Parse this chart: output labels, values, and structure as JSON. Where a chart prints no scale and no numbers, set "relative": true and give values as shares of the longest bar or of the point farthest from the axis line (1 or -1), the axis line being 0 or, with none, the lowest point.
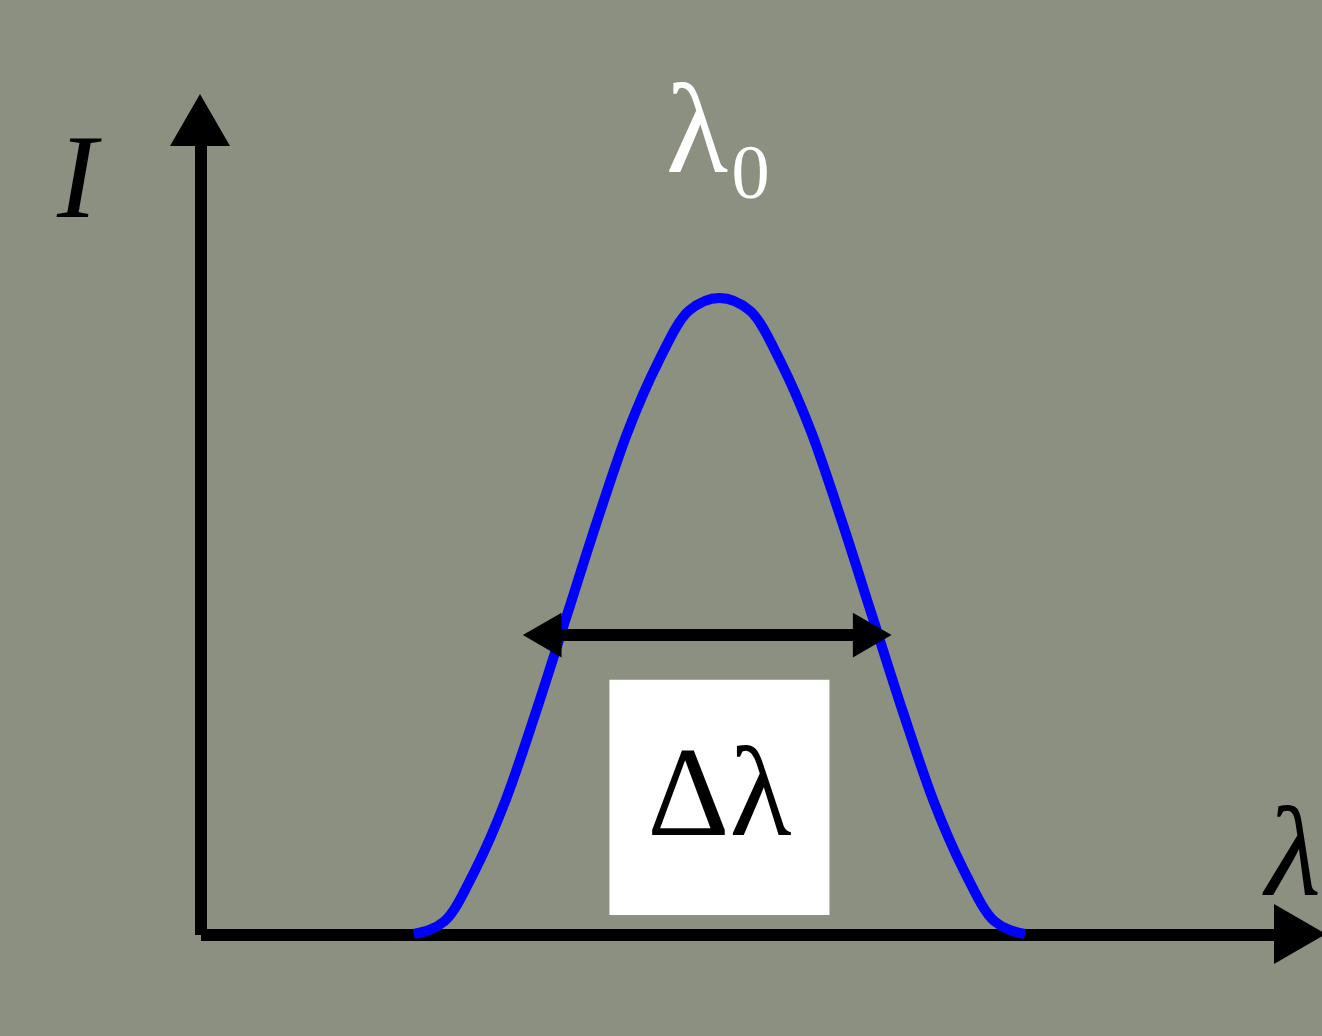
{
  "chart_data": {
    "type": "line",
    "relative": true,
    "xlabel": "λ",
    "ylabel": "I",
    "annotations": [
      "λ₀",
      "Δλ"
    ],
    "grid": false,
    "marker": "none",
    "line_style": "solid",
    "categories": [
      null,
      null,
      null,
      null,
      null,
      null,
      null,
      null,
      null,
      null,
      null,
      null,
      null,
      null,
      null,
      null,
      null,
      null,
      null,
      null,
      null,
      null,
      null,
      null,
      null,
      null,
      null,
      null,
      null,
      null,
      null,
      null,
      null,
      null,
      null,
      null,
      null
    ],
    "series": [
      {
        "color": "#0000ff",
        "values": [
          null,
          null,
          null,
          null,
          null,
          null,
          null,
          0,
          0.02,
          0.1,
          0.21,
          0.35,
          0.5,
          0.65,
          0.79,
          0.9,
          0.98,
          1,
          0.98,
          0.9,
          0.79,
          0.65,
          0.5,
          0.35,
          0.21,
          0.1,
          0.02,
          0,
          null,
          null,
          null,
          null,
          null,
          null,
          null,
          null,
          null
        ]
      }
    ]
  }
}
